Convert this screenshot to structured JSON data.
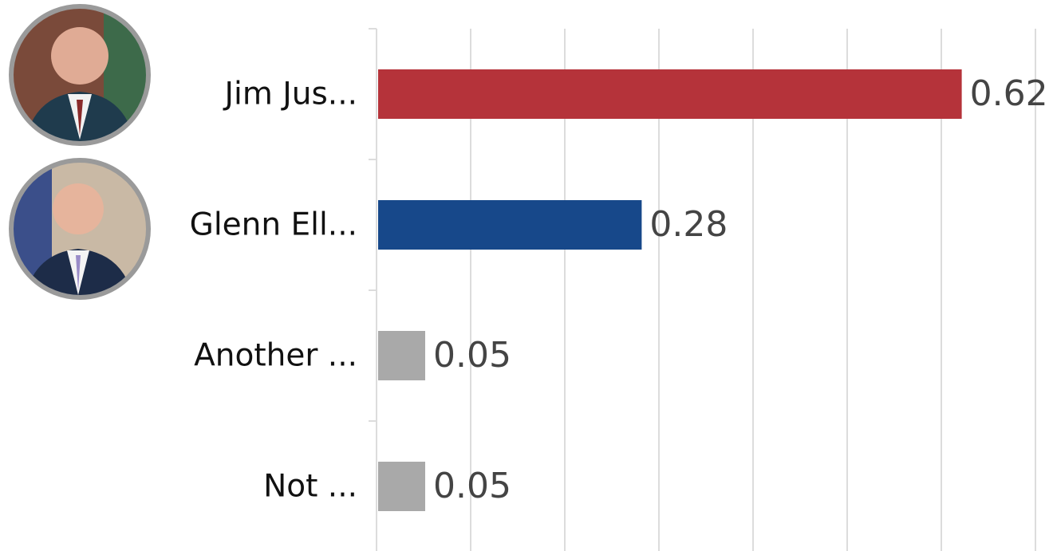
{
  "chart_data": {
    "type": "bar",
    "orientation": "horizontal",
    "categories": [
      "Jim Jus...",
      "Glenn Ell...",
      "Another ...",
      "Not ..."
    ],
    "values": [
      0.62,
      0.28,
      0.05,
      0.05
    ],
    "colors": [
      "#b5333a",
      "#17488a",
      "#a9a9a9",
      "#a9a9a9"
    ],
    "xlim": [
      0,
      0.7
    ],
    "xticks": [
      0,
      0.1,
      0.2,
      0.3,
      0.4,
      0.5,
      0.6,
      0.7
    ],
    "grid": true
  }
}
